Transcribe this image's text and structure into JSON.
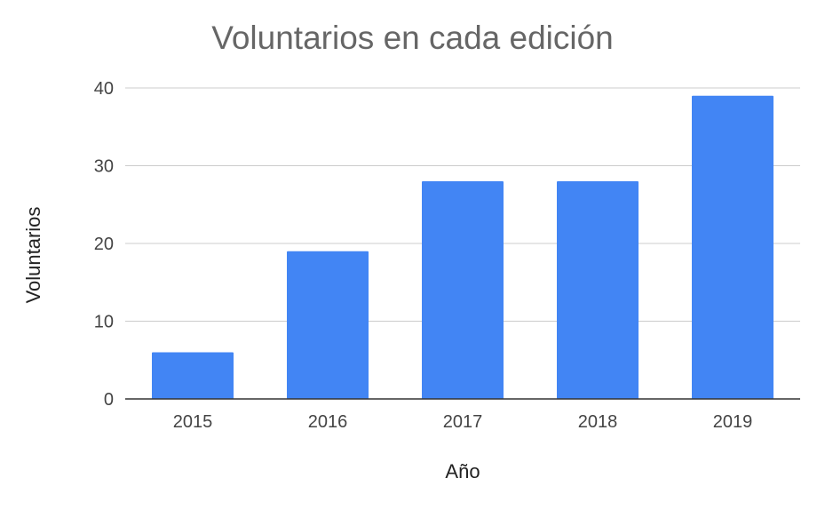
{
  "chart_data": {
    "type": "bar",
    "title": "Voluntarios en cada edición",
    "xlabel": "Año",
    "ylabel": "Voluntarios",
    "categories": [
      "2015",
      "2016",
      "2017",
      "2018",
      "2019"
    ],
    "values": [
      6,
      19,
      28,
      28,
      39
    ],
    "ylim": [
      0,
      40
    ],
    "yticks": [
      0,
      10,
      20,
      30,
      40
    ],
    "grid": true,
    "bar_color": "#4285f4"
  }
}
